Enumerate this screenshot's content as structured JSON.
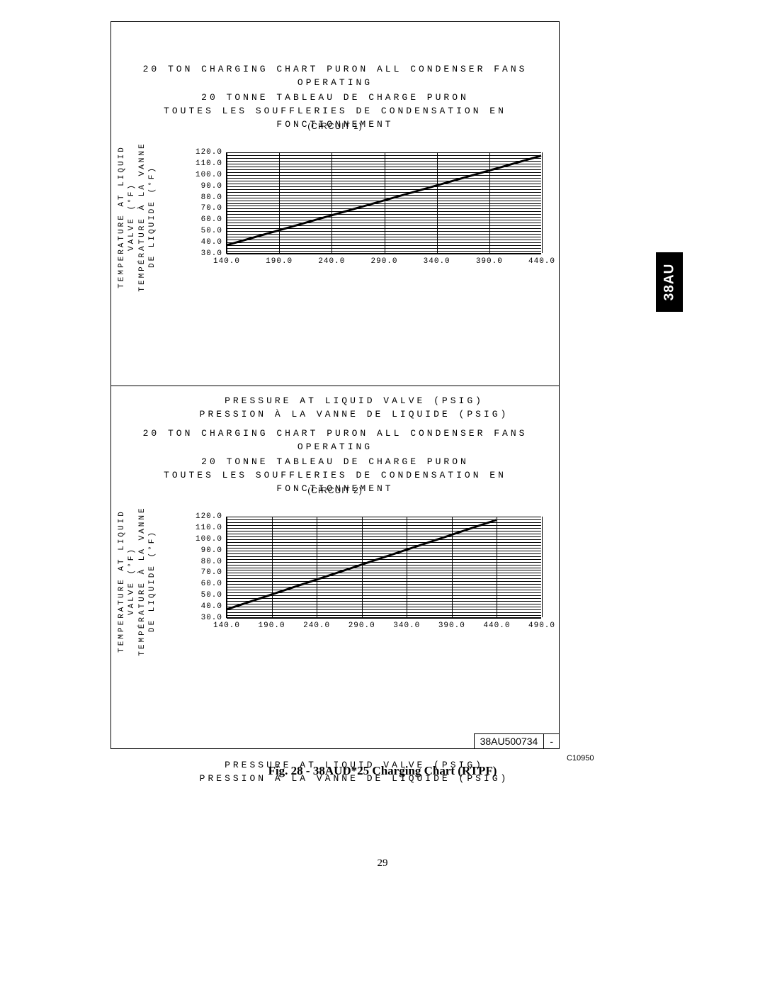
{
  "side_tab": "38AU",
  "caption": "Fig. 28 - 38AUD*25 Charging Chart (RTPF)",
  "code_label": "C10950",
  "page_number": "29",
  "partbox": {
    "part": "38AU500734",
    "rev": "-"
  },
  "colors": {
    "background": "#ffffff",
    "ink": "#000000",
    "grid": "#000000",
    "line": "#000000"
  },
  "common": {
    "title_en": "20 TON CHARGING CHART PURON ALL CONDENSER FANS OPERATING",
    "title_fr1": "20 TONNE TABLEAU DE CHARGE PURON",
    "title_fr2": "TOUTES LES SOUFFLERIES DE CONDENSATION EN FONCTIONNEMENT",
    "ylabel_en": "TEMPERATURE AT LIQUID VALVE (°F)",
    "ylabel_fr": "TEMPÉRATURE À LA VANNE DE LIQUIDE (°F)",
    "xlabel_en": "PRESSURE AT LIQUID VALVE (PSIG)",
    "xlabel_fr": "PRESSION À LA VANNE DE LIQUIDE (PSIG)",
    "title_fontsize": 13,
    "label_fontsize": 11,
    "tick_fontsize": 11
  },
  "charts": [
    {
      "circuit": "(CIRCUIT 1)",
      "type": "line",
      "ylim": [
        30.0,
        120.0
      ],
      "yticks": [
        30.0,
        40.0,
        50.0,
        60.0,
        70.0,
        80.0,
        90.0,
        100.0,
        110.0,
        120.0
      ],
      "ytick_labels": [
        "30.0",
        "40.0",
        "50.0",
        "60.0",
        "70.0",
        "80.0",
        "90.0",
        "100.0",
        "110.0",
        "120.0"
      ],
      "hgrid_minor_per_major": 4,
      "xlim": [
        140.0,
        440.0
      ],
      "xticks": [
        140.0,
        190.0,
        240.0,
        290.0,
        340.0,
        390.0,
        440.0
      ],
      "xtick_labels": [
        "140.0",
        "190.0",
        "240.0",
        "290.0",
        "340.0",
        "390.0",
        "440.0"
      ],
      "line_color": "#000000",
      "line_width": 3,
      "series": [
        {
          "x": 140.0,
          "y": 37.0
        },
        {
          "x": 440.0,
          "y": 117.0
        }
      ]
    },
    {
      "circuit": "(CIRCUIT 2)",
      "type": "line",
      "ylim": [
        30.0,
        120.0
      ],
      "yticks": [
        30.0,
        40.0,
        50.0,
        60.0,
        70.0,
        80.0,
        90.0,
        100.0,
        110.0,
        120.0
      ],
      "ytick_labels": [
        "30.0",
        "40.0",
        "50.0",
        "60.0",
        "70.0",
        "80.0",
        "90.0",
        "100.0",
        "110.0",
        "120.0"
      ],
      "hgrid_minor_per_major": 4,
      "xlim": [
        140.0,
        490.0
      ],
      "xticks": [
        140.0,
        190.0,
        240.0,
        290.0,
        340.0,
        390.0,
        440.0,
        490.0
      ],
      "xtick_labels": [
        "140.0",
        "190.0",
        "240.0",
        "290.0",
        "340.0",
        "390.0",
        "440.0",
        "490.0"
      ],
      "line_color": "#000000",
      "line_width": 3,
      "series": [
        {
          "x": 140.0,
          "y": 37.0
        },
        {
          "x": 440.0,
          "y": 117.0
        }
      ]
    }
  ]
}
